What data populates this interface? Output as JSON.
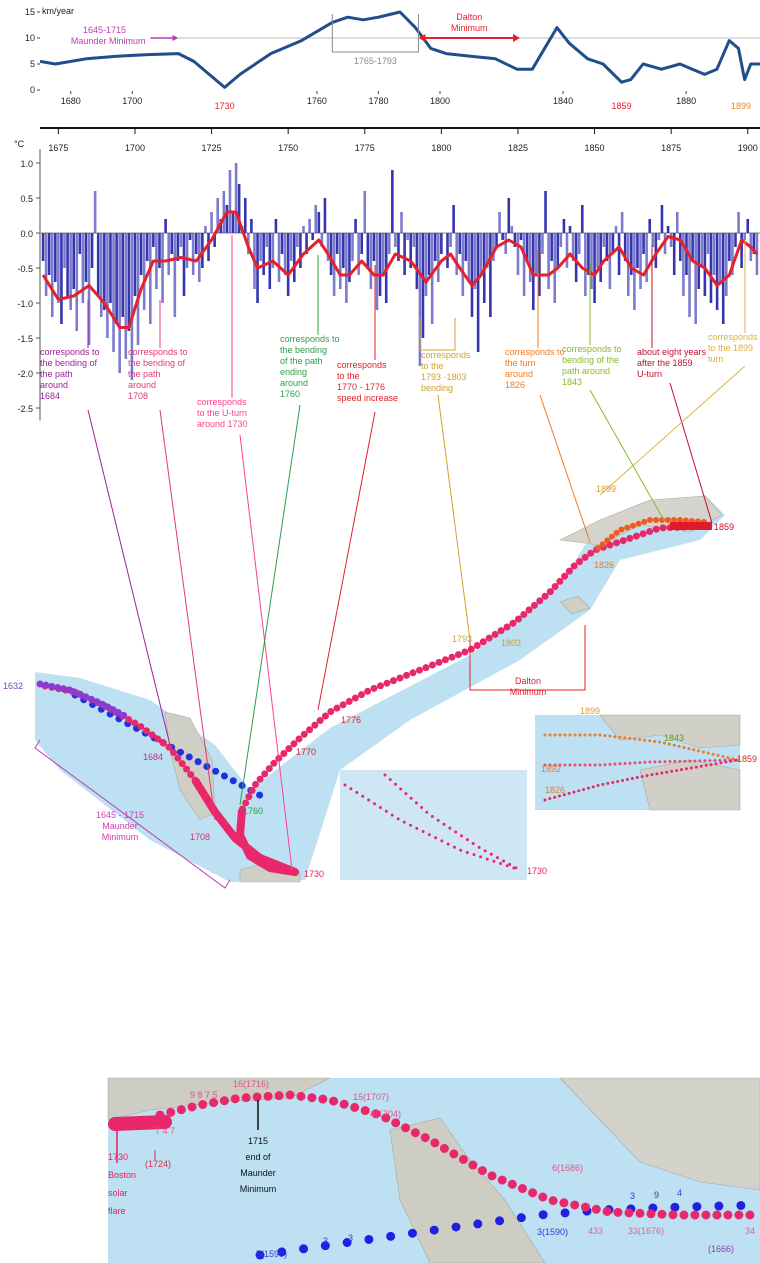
{
  "chart_data": [
    {
      "type": "line",
      "ylabel": "km/year",
      "x": [
        1670,
        1675,
        1685,
        1695,
        1705,
        1715,
        1720,
        1725,
        1730,
        1735,
        1745,
        1755,
        1765,
        1770,
        1775,
        1780,
        1787,
        1792,
        1797,
        1802,
        1810,
        1818,
        1825,
        1830,
        1835,
        1838,
        1842,
        1848,
        1853,
        1859,
        1862,
        1866,
        1872,
        1878,
        1882,
        1886,
        1890,
        1894,
        1897,
        1899,
        1901,
        1904
      ],
      "values": [
        5.5,
        5,
        6,
        6.5,
        6.8,
        7,
        5.5,
        3,
        0.5,
        3,
        7,
        9.5,
        13,
        14,
        13.5,
        14,
        15,
        12,
        8,
        7,
        6.5,
        6,
        4,
        4,
        9,
        12,
        9,
        6,
        5,
        1.5,
        2,
        5,
        4,
        5,
        4,
        3,
        4,
        9.5,
        8,
        2,
        5,
        5
      ],
      "color": "#1f4e8c",
      "xlim": [
        1670,
        1904
      ],
      "ylim": [
        0,
        15
      ],
      "xticks": [
        1680,
        1700,
        1760,
        1780,
        1800,
        1840,
        1880
      ],
      "yticks": [
        0,
        5,
        10,
        15
      ],
      "highlight_xticks": [
        1730,
        1859,
        1899
      ],
      "highlight_colors": [
        "#e8202a",
        "#e8202a",
        "#f08a20"
      ],
      "reference_line": 10,
      "maunder": {
        "lines": [
          "1645-1715",
          "Maunder Minimum"
        ],
        "end": 1715,
        "color": "#c03cb0"
      },
      "bracket": {
        "label": "1765-1793",
        "range": [
          1765,
          1793
        ],
        "color": "#8a8a8a"
      },
      "dalton": {
        "lines": [
          "Dalton",
          "Minimum"
        ],
        "range": [
          1793,
          1826
        ],
        "color": "#e8202a"
      }
    },
    {
      "type": "bar",
      "ylabel": "°C",
      "x": [
        1670,
        1671,
        1672,
        1673,
        1674,
        1675,
        1676,
        1677,
        1678,
        1679,
        1680,
        1681,
        1682,
        1683,
        1684,
        1685,
        1686,
        1687,
        1688,
        1689,
        1690,
        1691,
        1692,
        1693,
        1694,
        1695,
        1696,
        1697,
        1698,
        1699,
        1700,
        1701,
        1702,
        1703,
        1704,
        1705,
        1706,
        1707,
        1708,
        1709,
        1710,
        1711,
        1712,
        1713,
        1714,
        1715,
        1716,
        1717,
        1718,
        1719,
        1720,
        1721,
        1722,
        1723,
        1724,
        1725,
        1726,
        1727,
        1728,
        1729,
        1730,
        1731,
        1732,
        1733,
        1734,
        1735,
        1736,
        1737,
        1738,
        1739,
        1740,
        1741,
        1742,
        1743,
        1744,
        1745,
        1746,
        1747,
        1748,
        1749,
        1750,
        1751,
        1752,
        1753,
        1754,
        1755,
        1756,
        1757,
        1758,
        1759,
        1760,
        1761,
        1762,
        1763,
        1764,
        1765,
        1766,
        1767,
        1768,
        1769,
        1770,
        1771,
        1772,
        1773,
        1774,
        1775,
        1776,
        1777,
        1778,
        1779,
        1780,
        1781,
        1782,
        1783,
        1784,
        1785,
        1786,
        1787,
        1788,
        1789,
        1790,
        1791,
        1792,
        1793,
        1794,
        1795,
        1796,
        1797,
        1798,
        1799,
        1800,
        1801,
        1802,
        1803,
        1804,
        1805,
        1806,
        1807,
        1808,
        1809,
        1810,
        1811,
        1812,
        1813,
        1814,
        1815,
        1816,
        1817,
        1818,
        1819,
        1820,
        1821,
        1822,
        1823,
        1824,
        1825,
        1826,
        1827,
        1828,
        1829,
        1830,
        1831,
        1832,
        1833,
        1834,
        1835,
        1836,
        1837,
        1838,
        1839,
        1840,
        1841,
        1842,
        1843,
        1844,
        1845,
        1846,
        1847,
        1848,
        1849,
        1850,
        1851,
        1852,
        1853,
        1854,
        1855,
        1856,
        1857,
        1858,
        1859,
        1860,
        1861,
        1862,
        1863,
        1864,
        1865,
        1866,
        1867,
        1868,
        1869,
        1870,
        1871,
        1872,
        1873,
        1874,
        1875,
        1876,
        1877,
        1878,
        1879,
        1880,
        1881,
        1882,
        1883,
        1884,
        1885,
        1886,
        1887,
        1888,
        1889,
        1890,
        1891,
        1892,
        1893,
        1894,
        1895,
        1896,
        1897,
        1898,
        1899,
        1900,
        1901,
        1902,
        1903
      ],
      "values": [
        -0.4,
        -0.9,
        -0.6,
        -1.2,
        -0.7,
        -1.0,
        -1.3,
        -0.5,
        -0.9,
        -1.1,
        -0.8,
        -1.4,
        -0.3,
        -1.0,
        -0.7,
        -1.6,
        -0.5,
        0.6,
        -0.9,
        -1.2,
        -1.1,
        -1.5,
        -1.0,
        -1.7,
        -1.3,
        -2.0,
        -1.2,
        -1.8,
        -1.4,
        -2.1,
        -0.9,
        -1.6,
        -0.6,
        -1.1,
        -0.4,
        -1.3,
        -0.2,
        -0.8,
        -0.5,
        -1.0,
        0.2,
        -0.6,
        -0.3,
        -1.2,
        -0.4,
        -0.2,
        -0.9,
        -0.5,
        -0.1,
        -0.6,
        -0.3,
        -0.7,
        -0.5,
        0.1,
        -0.4,
        0.3,
        -0.2,
        0.5,
        0.2,
        0.6,
        0.4,
        0.9,
        0.3,
        1.0,
        0.7,
        0.1,
        0.5,
        -0.3,
        0.2,
        -0.8,
        -1.0,
        -0.4,
        -0.6,
        -0.2,
        -0.8,
        -0.5,
        0.2,
        -0.7,
        -0.3,
        -0.6,
        -0.9,
        -0.4,
        -0.7,
        -0.2,
        -0.5,
        0.1,
        -0.3,
        0.2,
        -0.1,
        0.4,
        0.3,
        -0.2,
        0.5,
        -0.4,
        -0.6,
        -0.9,
        -0.3,
        -0.8,
        -0.5,
        -1.0,
        -0.7,
        -0.4,
        0.2,
        -0.6,
        -0.3,
        0.6,
        -0.5,
        -0.8,
        -0.4,
        -1.1,
        -0.9,
        -0.6,
        -1.0,
        -0.3,
        0.9,
        -0.2,
        -0.4,
        0.3,
        -0.6,
        -0.1,
        -0.5,
        -0.2,
        -0.8,
        -1.9,
        -1.5,
        -0.9,
        -0.6,
        -1.3,
        -0.4,
        -0.7,
        -0.3,
        0.0,
        -0.5,
        -0.2,
        0.4,
        -0.6,
        -0.3,
        -0.9,
        -0.4,
        -0.7,
        -1.2,
        -0.8,
        -1.7,
        -0.6,
        -1.0,
        -0.5,
        -1.2,
        -0.4,
        -0.2,
        0.3,
        -0.1,
        -0.3,
        0.5,
        0.1,
        -0.2,
        -0.6,
        -0.1,
        -0.9,
        -0.4,
        -0.7,
        -1.1,
        -0.6,
        -0.9,
        -0.3,
        0.6,
        -0.8,
        -0.4,
        -1.0,
        -0.5,
        -0.2,
        0.2,
        -0.5,
        0.1,
        -0.4,
        -0.7,
        -0.3,
        0.4,
        -0.9,
        -0.6,
        -0.8,
        -1.0,
        -0.5,
        -0.7,
        -0.2,
        -0.4,
        -0.8,
        -0.3,
        0.1,
        -0.6,
        0.3,
        -0.4,
        -0.9,
        -0.6,
        -1.1,
        -0.5,
        -0.8,
        -0.3,
        -0.7,
        0.2,
        -0.2,
        -0.5,
        -0.1,
        0.4,
        -0.3,
        0.1,
        -0.2,
        -0.6,
        0.3,
        -0.4,
        -0.9,
        -0.6,
        -1.2,
        -0.4,
        -1.3,
        -0.8,
        -0.5,
        -0.9,
        -0.3,
        -1.0,
        -0.6,
        -1.1,
        -0.7,
        -1.3,
        -0.9,
        -0.4,
        -0.6,
        -0.2,
        0.3,
        -0.5,
        -0.1,
        0.2,
        -0.4,
        -0.3,
        -0.6
      ],
      "color": "#3535b0",
      "xlim": [
        1669,
        1904
      ],
      "ylim": [
        -2.65,
        1.2
      ],
      "xticks": [
        1675,
        1700,
        1725,
        1750,
        1775,
        1800,
        1825,
        1850,
        1875,
        1900
      ],
      "yticks": [
        {
          "value": 1,
          "label": "1.0"
        },
        0.5,
        {
          "value": 0,
          "label": "0.0"
        },
        -0.5,
        {
          "value": -1,
          "label": "-1.0"
        },
        -1.5,
        {
          "value": -2,
          "label": "-2.0"
        },
        -2.5
      ],
      "overlay": {
        "type": "line",
        "color": "#e8202a",
        "x": [
          1670,
          1675,
          1680,
          1685,
          1690,
          1695,
          1698,
          1702,
          1706,
          1710,
          1715,
          1720,
          1725,
          1730,
          1733,
          1737,
          1740,
          1745,
          1750,
          1755,
          1760,
          1763,
          1767,
          1770,
          1774,
          1778,
          1781,
          1785,
          1790,
          1795,
          1800,
          1803,
          1806,
          1810,
          1813,
          1818,
          1822,
          1826,
          1830,
          1835,
          1838,
          1842,
          1846,
          1850,
          1853,
          1858,
          1862,
          1866,
          1870,
          1874,
          1878,
          1882,
          1886,
          1890,
          1894,
          1898,
          1901,
          1903
        ],
        "values": [
          -0.6,
          -0.95,
          -0.9,
          -0.75,
          -1.0,
          -1.35,
          -1.35,
          -0.8,
          -0.4,
          -0.4,
          -0.35,
          -0.4,
          -0.1,
          0.3,
          0.3,
          -0.2,
          -0.5,
          -0.4,
          -0.6,
          -0.3,
          -0.1,
          -0.3,
          -0.6,
          -0.6,
          -0.4,
          -0.6,
          -0.6,
          -0.3,
          -0.4,
          -0.7,
          -0.4,
          -0.3,
          -0.5,
          -0.75,
          -0.6,
          -0.2,
          -0.1,
          -0.2,
          -0.6,
          -0.6,
          -0.5,
          -0.3,
          -0.5,
          -0.6,
          -0.4,
          -0.2,
          -0.5,
          -0.6,
          -0.3,
          -0.05,
          -0.1,
          -0.4,
          -0.5,
          -0.75,
          -0.6,
          -0.1,
          -0.2,
          -0.3
        ]
      }
    }
  ],
  "annotations": [
    {
      "lines": [
        "corresponds to",
        "the bending of",
        "the path",
        "around",
        "1684"
      ],
      "color": "#a0209a"
    },
    {
      "lines": [
        "corresponds to",
        "the bending of",
        "the path",
        "around",
        "1708"
      ],
      "color": "#e03a7a"
    },
    {
      "lines": [
        "corresponds",
        "to the U-turn",
        "around 1730"
      ],
      "color": "#ff3f8f"
    },
    {
      "lines": [
        "corresponds to",
        "the bending",
        "of the path",
        "ending",
        "around",
        "1760"
      ],
      "color": "#2aa04a"
    },
    {
      "lines": [
        "corresponds",
        "to the",
        "1770 - 1776",
        "speed increase"
      ],
      "color": "#e0202a"
    },
    {
      "lines": [
        "corresponds",
        "to the",
        "1793 -1803",
        "bending"
      ],
      "color": "#d0a030"
    },
    {
      "lines": [
        "corresponds to",
        "the turn",
        "around",
        "1826"
      ],
      "color": "#f07a20"
    },
    {
      "lines": [
        "corresponds to",
        "bending of the",
        "path around",
        "1843"
      ],
      "color": "#8ab82a"
    },
    {
      "lines": [
        "about eight years",
        "after the 1859",
        "U-turn"
      ],
      "color": "#c0102a"
    },
    {
      "lines": [
        "corresponds",
        "to the 1899",
        "turn"
      ],
      "color": "#e0b040"
    }
  ],
  "map": {
    "labels": [
      {
        "text": "1632",
        "color": "#8040c0"
      },
      {
        "text": "1684",
        "color": "#c0308a"
      },
      {
        "text": "1708",
        "color": "#e0306f"
      },
      {
        "text": "1730",
        "color": "#e8205a"
      },
      {
        "text": "1760",
        "color": "#2aa04a"
      },
      {
        "text": "1770",
        "color": "#e0202a"
      },
      {
        "text": "1776",
        "color": "#e0202a"
      },
      {
        "text": "1793",
        "color": "#d0a030"
      },
      {
        "text": "1803",
        "color": "#d0a030"
      },
      {
        "text": "1826",
        "color": "#f07a20"
      },
      {
        "text": "1859",
        "color": "#c0102a"
      },
      {
        "text": "1899",
        "color": "#d0a030"
      }
    ],
    "dalton": {
      "lines": [
        "Dalton",
        "Minimum"
      ],
      "color": "#e0202a"
    },
    "maunder": {
      "lines": [
        "1645 - 1715",
        "Maunder",
        "Minimum"
      ],
      "color": "#d03cb0"
    },
    "inset_right": [
      {
        "text": "1899",
        "color": "#d0a030"
      },
      {
        "text": "1843",
        "color": "#6a9a1a"
      },
      {
        "text": "1892",
        "color": "#f07a20"
      },
      {
        "text": "1826",
        "color": "#f07a20"
      },
      {
        "text": "1859",
        "color": "#e0202a"
      }
    ],
    "inset_bottom": [
      {
        "text": "1730",
        "color": "#e8205a"
      }
    ]
  },
  "bottom_map": {
    "labels": [
      {
        "text": "9 8 7 5",
        "color": "#e8508a"
      },
      {
        "text": "16(1716)",
        "color": "#e8508a"
      },
      {
        "text": "15(1707)",
        "color": "#e8508a"
      },
      {
        "text": "4(1704)",
        "color": "#e8508a"
      },
      {
        "text": "7 4 7",
        "color": "#e8508a"
      },
      {
        "text": "(1724)",
        "color": "#e02a4a"
      },
      {
        "text": "6(1686)",
        "color": "#e8508a"
      },
      {
        "text": "433",
        "color": "#d06a9a"
      },
      {
        "text": "33(1676)",
        "color": "#d06a9a"
      },
      {
        "text": "34",
        "color": "#d06a9a"
      },
      {
        "text": "(1666)",
        "color": "#9040b0"
      },
      {
        "text": "3",
        "color": "#3a3ad0"
      },
      {
        "text": "9",
        "color": "#3a3ad0"
      },
      {
        "text": "4",
        "color": "#3a3ad0"
      },
      {
        "text": "3(1590)",
        "color": "#3a3ad0"
      },
      {
        "text": "5(1590)",
        "color": "#3a3ad0"
      },
      {
        "text": "3",
        "color": "#3a3ad0"
      },
      {
        "text": "3",
        "color": "#3a3ad0"
      }
    ],
    "boston": {
      "lines": [
        "1730",
        "Boston",
        "solar",
        "flare"
      ],
      "color": "#e8205a"
    },
    "maunder_end": {
      "lines": [
        "1715",
        "end of",
        "Maunder",
        "Minimum"
      ],
      "color": "#111111"
    }
  }
}
